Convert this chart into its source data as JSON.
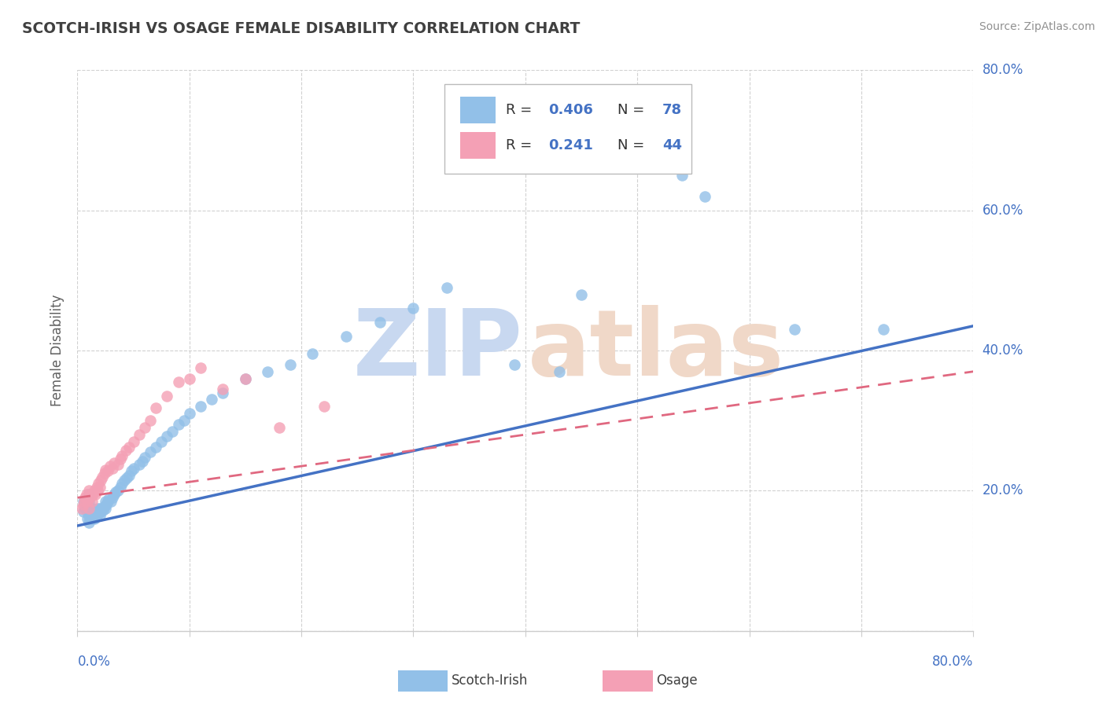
{
  "title": "SCOTCH-IRISH VS OSAGE FEMALE DISABILITY CORRELATION CHART",
  "source": "Source: ZipAtlas.com",
  "ylabel": "Female Disability",
  "blue_scatter_color": "#92C0E8",
  "pink_scatter_color": "#F4A0B5",
  "blue_line_color": "#4472C4",
  "pink_line_color": "#E06880",
  "title_color": "#404040",
  "source_color": "#909090",
  "label_color": "#4472C4",
  "legend_text_color": "#333333",
  "legend_val_color": "#4472C4",
  "watermark_zip_color": "#C8D8F0",
  "watermark_atlas_color": "#F0D8C8",
  "background_color": "#FFFFFF",
  "grid_color": "#CCCCCC",
  "xlim": [
    0.0,
    0.8
  ],
  "ylim": [
    0.0,
    0.8
  ],
  "scotch_irish_x": [
    0.005,
    0.005,
    0.007,
    0.008,
    0.009,
    0.009,
    0.01,
    0.01,
    0.01,
    0.01,
    0.01,
    0.011,
    0.012,
    0.012,
    0.013,
    0.013,
    0.014,
    0.014,
    0.015,
    0.015,
    0.016,
    0.016,
    0.017,
    0.018,
    0.018,
    0.019,
    0.02,
    0.02,
    0.021,
    0.022,
    0.023,
    0.024,
    0.025,
    0.025,
    0.026,
    0.027,
    0.028,
    0.03,
    0.031,
    0.033,
    0.034,
    0.036,
    0.038,
    0.04,
    0.042,
    0.044,
    0.046,
    0.048,
    0.05,
    0.055,
    0.058,
    0.06,
    0.065,
    0.07,
    0.075,
    0.08,
    0.085,
    0.09,
    0.095,
    0.1,
    0.11,
    0.12,
    0.13,
    0.15,
    0.17,
    0.19,
    0.21,
    0.24,
    0.27,
    0.3,
    0.33,
    0.39,
    0.43,
    0.45,
    0.54,
    0.56,
    0.64,
    0.72
  ],
  "scotch_irish_y": [
    0.17,
    0.185,
    0.175,
    0.18,
    0.16,
    0.17,
    0.155,
    0.165,
    0.175,
    0.185,
    0.195,
    0.16,
    0.165,
    0.175,
    0.16,
    0.17,
    0.165,
    0.175,
    0.16,
    0.17,
    0.162,
    0.172,
    0.165,
    0.168,
    0.175,
    0.168,
    0.165,
    0.175,
    0.17,
    0.175,
    0.172,
    0.178,
    0.175,
    0.185,
    0.18,
    0.185,
    0.188,
    0.185,
    0.19,
    0.195,
    0.198,
    0.2,
    0.205,
    0.21,
    0.215,
    0.218,
    0.222,
    0.228,
    0.232,
    0.238,
    0.242,
    0.248,
    0.255,
    0.262,
    0.27,
    0.278,
    0.285,
    0.295,
    0.3,
    0.31,
    0.32,
    0.33,
    0.34,
    0.36,
    0.37,
    0.38,
    0.395,
    0.42,
    0.44,
    0.46,
    0.49,
    0.38,
    0.37,
    0.48,
    0.65,
    0.62,
    0.43,
    0.43
  ],
  "osage_x": [
    0.004,
    0.005,
    0.006,
    0.007,
    0.008,
    0.009,
    0.01,
    0.01,
    0.011,
    0.012,
    0.013,
    0.014,
    0.015,
    0.016,
    0.017,
    0.018,
    0.019,
    0.02,
    0.021,
    0.022,
    0.024,
    0.025,
    0.027,
    0.029,
    0.031,
    0.033,
    0.036,
    0.038,
    0.04,
    0.043,
    0.046,
    0.05,
    0.055,
    0.06,
    0.065,
    0.07,
    0.08,
    0.09,
    0.1,
    0.11,
    0.13,
    0.15,
    0.18,
    0.22
  ],
  "osage_y": [
    0.175,
    0.18,
    0.185,
    0.19,
    0.195,
    0.185,
    0.175,
    0.2,
    0.19,
    0.195,
    0.185,
    0.195,
    0.2,
    0.195,
    0.205,
    0.2,
    0.21,
    0.205,
    0.215,
    0.22,
    0.225,
    0.23,
    0.228,
    0.235,
    0.232,
    0.24,
    0.238,
    0.245,
    0.25,
    0.258,
    0.262,
    0.27,
    0.28,
    0.29,
    0.3,
    0.318,
    0.335,
    0.355,
    0.36,
    0.375,
    0.345,
    0.36,
    0.29,
    0.32
  ],
  "blue_line_x0": 0.0,
  "blue_line_x1": 0.8,
  "blue_line_y0": 0.15,
  "blue_line_y1": 0.435,
  "pink_line_x0": 0.0,
  "pink_line_x1": 0.8,
  "pink_line_y0": 0.19,
  "pink_line_y1": 0.37
}
